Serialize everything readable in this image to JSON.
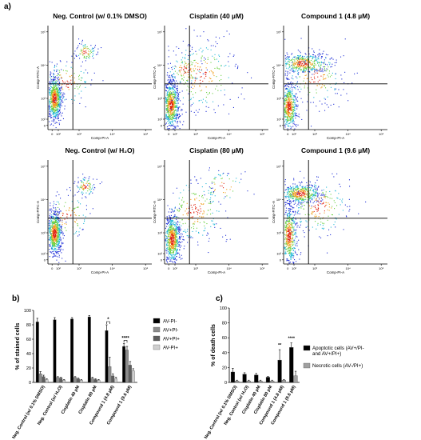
{
  "panels": {
    "a": "a)",
    "b": "b)",
    "c": "c)"
  },
  "flow_plots": [
    {
      "title": "Neg. Control (w/ 0.1% DMSO)",
      "profile": "control"
    },
    {
      "title": "Cisplatin (40 µM)",
      "profile": "cis40"
    },
    {
      "title": "Compound 1 (4.8 µM)",
      "profile": "c48"
    },
    {
      "title": "Neg. Control (w/ H₂O)",
      "profile": "control"
    },
    {
      "title": "Cisplatin (80 µM)",
      "profile": "cis80"
    },
    {
      "title": "Compound 1 (9.6 µM)",
      "profile": "c96"
    }
  ],
  "flow_axes": {
    "xlabel": "Comp-PI-A",
    "ylabel": "Comp-FITC-A",
    "xticks": [
      "0",
      "10²",
      "10³",
      "10⁴",
      "10⁵"
    ],
    "yticks": [
      "0",
      "10²",
      "10³",
      "10⁴",
      "10⁵"
    ]
  },
  "chart_data": [
    {
      "type": "bar",
      "panel": "b",
      "ylabel": "% of stained cells",
      "ylim": [
        0,
        100
      ],
      "yticks": [
        0,
        20,
        40,
        60,
        80,
        100
      ],
      "categories": [
        "Neg. Control (w/ 0.1% DMSO)",
        "Neg. Control (w/ H₂O)",
        "Cisplatin 40 µM",
        "Cisplatin 80 µM",
        "Compound 1 (4.8 µM)",
        "Compound 1 (9.6 µM)"
      ],
      "series": [
        {
          "name": "AV-PI-",
          "color": "#000000",
          "values": [
            84,
            87,
            88,
            91,
            72,
            50
          ],
          "errors": [
            5,
            3,
            2,
            2,
            8,
            4
          ]
        },
        {
          "name": "AV+PI-",
          "color": "#8c8c8c",
          "values": [
            12,
            7,
            7,
            6,
            22,
            45
          ],
          "errors": [
            3,
            1,
            1,
            1,
            13,
            5
          ]
        },
        {
          "name": "AV+PI+",
          "color": "#5e5e5e",
          "values": [
            8,
            6,
            5,
            4,
            9,
            24
          ],
          "errors": [
            2,
            1,
            1,
            1,
            3,
            5
          ]
        },
        {
          "name": "AV-PI+",
          "color": "#cfcfcf",
          "values": [
            4,
            3,
            3,
            3,
            5,
            16
          ],
          "errors": [
            1,
            1,
            1,
            1,
            2,
            3
          ]
        }
      ],
      "significance": [
        {
          "category": 4,
          "label": "*"
        },
        {
          "category": 5,
          "label": "****"
        }
      ],
      "legend": "right"
    },
    {
      "type": "bar",
      "panel": "c",
      "ylabel": "% of death cells",
      "ylim": [
        0,
        100
      ],
      "yticks": [
        0,
        20,
        40,
        60,
        80,
        100
      ],
      "categories": [
        "Neg. Control (w/ 0.1% DMSO)",
        "Neg. Control (w/ H₂O)",
        "Cisplatin 40 µM",
        "Cisplatin 80 µM",
        "Compound 1 (4.8 µM)",
        "Compound 1 (9.6 µM)"
      ],
      "series": [
        {
          "name": "Apoptotic cells (AV+/PI- and AV+/PI+)",
          "color": "#000000",
          "values": [
            14,
            11,
            10,
            7,
            30,
            47
          ],
          "errors": [
            5,
            2,
            2,
            1,
            14,
            6
          ]
        },
        {
          "name": "Necrotic cells (AV-/PI+)",
          "color": "#a0a0a0",
          "values": [
            2,
            2,
            2,
            2,
            3,
            9
          ],
          "errors": [
            1,
            1,
            1,
            1,
            1,
            6
          ]
        }
      ],
      "significance": [
        {
          "category": 4,
          "label": "**"
        },
        {
          "category": 5,
          "label": "****"
        }
      ],
      "legend": "right"
    }
  ]
}
